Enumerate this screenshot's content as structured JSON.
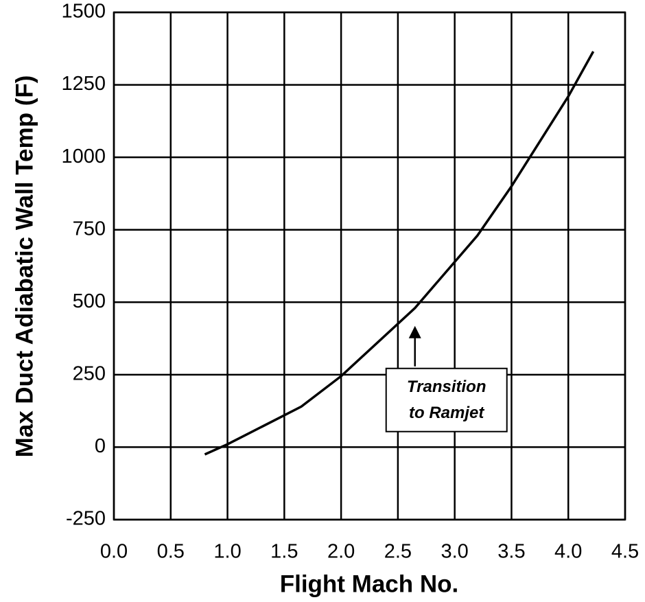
{
  "chart_data": {
    "type": "line",
    "x_label": "Flight Mach No.",
    "y_label": "Max Duct Adiabatic Wall Temp (F)",
    "x": [
      0.8,
      1.0,
      1.65,
      2.0,
      2.65,
      3.2,
      3.5,
      4.0,
      4.22
    ],
    "series": [
      {
        "color": "#000000",
        "values": [
          -25,
          10,
          140,
          245,
          480,
          730,
          900,
          1210,
          1365
        ]
      }
    ],
    "xlim": [
      0,
      4.5
    ],
    "xticks": [
      {
        "value": 0,
        "label": "0.0"
      },
      0.5,
      {
        "value": 1,
        "label": "1.0"
      },
      1.5,
      {
        "value": 2,
        "label": "2.0"
      },
      2.5,
      {
        "value": 3,
        "label": "3.0"
      },
      3.5,
      {
        "value": 4,
        "label": "4.0"
      },
      4.5
    ],
    "ylim": [
      -250,
      1500
    ],
    "yticks": [
      -250,
      0,
      250,
      500,
      750,
      1000,
      1250,
      1500
    ],
    "grid": true,
    "annotation": {
      "lines": [
        "Transition",
        "to Ramjet"
      ],
      "x": 2.65,
      "y": 480
    }
  }
}
